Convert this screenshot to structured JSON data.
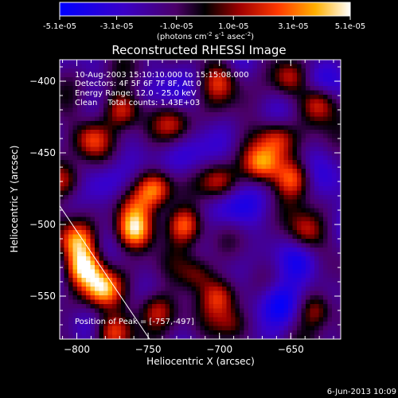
{
  "chart_data": {
    "type": "heatmap",
    "title": "Reconstructed RHESSI Image",
    "xlabel": "Heliocentric X (arcsec)",
    "ylabel": "Heliocentric Y (arcsec)",
    "xlim": [
      -812,
      -615
    ],
    "ylim": [
      -580,
      -385
    ],
    "x_ticks": [
      -800,
      -750,
      -700,
      -650
    ],
    "y_ticks": [
      -400,
      -450,
      -500,
      -550
    ],
    "x_tick_labels": [
      "-800",
      "-750",
      "-700",
      "-650"
    ],
    "y_tick_labels": [
      "-400",
      "-450",
      "-500",
      "-550"
    ],
    "colorbar": {
      "min": -5.1e-05,
      "max": 5.1e-05,
      "tick_values": [
        -5.1e-05,
        -3.1e-05,
        -1e-05,
        1e-05,
        3.1e-05,
        5.1e-05
      ],
      "tick_labels": [
        "-5.1e-05",
        "-3.1e-05",
        "-1.0e-05",
        "1.0e-05",
        "3.1e-05",
        "5.1e-05"
      ],
      "units_parts": {
        "prefix": "(photons cm",
        "exp1": "-2",
        "mid1": " s",
        "exp2": "-1",
        "mid2": " asec",
        "exp3": "-2",
        "suffix": ")"
      }
    },
    "info_lines": [
      "10-Aug-2003 15:10:10.000 to 15:15:08.000",
      "Detectors: 4F 5F 6F 7F 8F, Att 0",
      "Energy Range: 12.0 - 25.0 keV",
      "Clean    Total counts: 1.43E+03"
    ],
    "peak_text": "Position of Peak = [-757,-497]",
    "limb_points": [
      [
        -812,
        -487
      ],
      [
        -749,
        -580
      ]
    ],
    "sources": [
      {
        "x": -795,
        "y": -530,
        "a": 1.0
      },
      {
        "x": -782,
        "y": -545,
        "a": 0.9
      },
      {
        "x": -800,
        "y": -512,
        "a": 0.75
      },
      {
        "x": -760,
        "y": -505,
        "a": 0.95
      },
      {
        "x": -745,
        "y": -475,
        "a": 0.8
      },
      {
        "x": -725,
        "y": -500,
        "a": 0.85
      },
      {
        "x": -700,
        "y": -470,
        "a": 0.6
      },
      {
        "x": -670,
        "y": -458,
        "a": 0.75
      },
      {
        "x": -648,
        "y": -468,
        "a": 0.7
      },
      {
        "x": -660,
        "y": -440,
        "a": 0.6
      },
      {
        "x": -768,
        "y": -420,
        "a": 0.7
      },
      {
        "x": -790,
        "y": -440,
        "a": 0.55
      },
      {
        "x": -732,
        "y": -430,
        "a": 0.45
      },
      {
        "x": -640,
        "y": -505,
        "a": 0.55
      },
      {
        "x": -715,
        "y": -535,
        "a": 0.5
      },
      {
        "x": -700,
        "y": -550,
        "a": 0.55
      },
      {
        "x": -745,
        "y": -560,
        "a": 0.65
      },
      {
        "x": -632,
        "y": -560,
        "a": 0.6
      },
      {
        "x": -690,
        "y": -570,
        "a": 0.5
      },
      {
        "x": -775,
        "y": -575,
        "a": 0.55
      },
      {
        "x": -630,
        "y": -415,
        "a": 0.7
      },
      {
        "x": -700,
        "y": -400,
        "a": 0.5
      },
      {
        "x": -650,
        "y": -398,
        "a": 0.55
      },
      {
        "x": -808,
        "y": -470,
        "a": 0.6
      },
      {
        "x": -760,
        "y": -490,
        "a": 0.35
      }
    ],
    "negatives": [
      {
        "x": -660,
        "y": -555,
        "a": 0.8
      },
      {
        "x": -690,
        "y": -490,
        "a": 0.55
      },
      {
        "x": -720,
        "y": -455,
        "a": 0.45
      },
      {
        "x": -640,
        "y": -528,
        "a": 0.5
      },
      {
        "x": -635,
        "y": -400,
        "a": 0.6
      },
      {
        "x": -780,
        "y": -470,
        "a": 0.35
      },
      {
        "x": -740,
        "y": -410,
        "a": 0.3
      },
      {
        "x": -620,
        "y": -470,
        "a": 0.35
      }
    ]
  },
  "footer_date": "6-Jun-2013 10:09"
}
